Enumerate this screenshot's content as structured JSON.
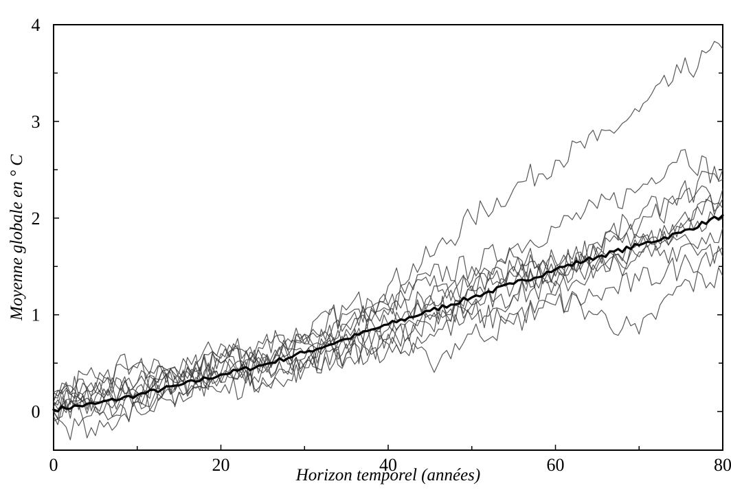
{
  "chart_data": {
    "type": "line",
    "title": "",
    "xlabel": "Horizon temporel (années)",
    "ylabel": "Moyenne globale en ° C",
    "xlim": [
      0,
      80
    ],
    "ylim": [
      -0.4,
      4
    ],
    "x_ticks": [
      0,
      20,
      40,
      60,
      80
    ],
    "x_tick_labels": [
      "0",
      "20",
      "40",
      "60",
      "80"
    ],
    "x_minor_ticks": [
      10,
      30,
      50,
      70
    ],
    "y_ticks": [
      0,
      1,
      2,
      3,
      4
    ],
    "y_tick_labels": [
      "0",
      "1",
      "2",
      "3",
      "4"
    ],
    "y_minor_ticks": [
      0.5,
      1.5,
      2.5,
      3.5
    ],
    "grid": false,
    "legend": "none",
    "colors": {
      "mean": "#000000",
      "runs": "#3a3a3a"
    },
    "series": [
      {
        "role": "mean",
        "x": [
          0,
          5,
          10,
          15,
          20,
          25,
          30,
          35,
          40,
          45,
          50,
          55,
          60,
          65,
          70,
          75,
          80
        ],
        "values": [
          0.02,
          0.08,
          0.17,
          0.27,
          0.38,
          0.48,
          0.61,
          0.75,
          0.9,
          1.04,
          1.18,
          1.32,
          1.47,
          1.6,
          1.72,
          1.85,
          2.03
        ]
      },
      {
        "role": "run",
        "x": [
          0,
          5,
          10,
          15,
          20,
          25,
          30,
          35,
          40,
          45,
          50,
          55,
          60,
          65,
          70,
          75,
          80
        ],
        "values": [
          0.1,
          0.2,
          0.3,
          0.35,
          0.7,
          0.55,
          0.8,
          1.05,
          1.3,
          1.6,
          2.0,
          2.3,
          2.6,
          2.8,
          3.1,
          3.5,
          3.75
        ]
      },
      {
        "role": "run",
        "x": [
          0,
          5,
          10,
          15,
          20,
          25,
          30,
          35,
          40,
          45,
          50,
          55,
          60,
          65,
          70,
          75,
          80
        ],
        "values": [
          0.0,
          0.1,
          0.25,
          0.3,
          0.4,
          0.5,
          0.6,
          0.9,
          1.1,
          1.4,
          1.5,
          1.7,
          1.9,
          2.1,
          2.3,
          2.7,
          2.4
        ]
      },
      {
        "role": "run",
        "x": [
          0,
          5,
          10,
          15,
          20,
          25,
          30,
          35,
          40,
          45,
          50,
          55,
          60,
          65,
          70,
          75,
          80
        ],
        "values": [
          0.15,
          0.3,
          0.2,
          0.4,
          0.55,
          0.65,
          0.75,
          0.9,
          1.05,
          1.0,
          1.25,
          1.5,
          1.45,
          1.7,
          1.9,
          2.2,
          2.5
        ]
      },
      {
        "role": "run",
        "x": [
          0,
          5,
          10,
          15,
          20,
          25,
          30,
          35,
          40,
          45,
          50,
          55,
          60,
          65,
          70,
          75,
          80
        ],
        "values": [
          -0.1,
          -0.25,
          0.1,
          0.2,
          0.3,
          0.45,
          0.5,
          0.7,
          0.8,
          0.9,
          1.1,
          1.2,
          1.5,
          1.65,
          1.8,
          2.0,
          2.2
        ]
      },
      {
        "role": "run",
        "x": [
          0,
          5,
          10,
          15,
          20,
          25,
          30,
          35,
          40,
          45,
          50,
          55,
          60,
          65,
          70,
          75,
          80
        ],
        "values": [
          0.2,
          0.25,
          0.45,
          0.35,
          0.5,
          0.6,
          0.55,
          0.8,
          0.85,
          1.1,
          1.0,
          1.2,
          1.3,
          1.45,
          1.6,
          1.7,
          1.9
        ]
      },
      {
        "role": "run",
        "x": [
          0,
          5,
          10,
          15,
          20,
          25,
          30,
          35,
          40,
          45,
          50,
          55,
          60,
          65,
          70,
          75,
          80
        ],
        "values": [
          0.05,
          0.0,
          0.15,
          0.3,
          0.2,
          0.35,
          0.45,
          0.6,
          0.7,
          0.5,
          0.8,
          0.9,
          1.2,
          1.0,
          0.8,
          1.3,
          1.4
        ]
      },
      {
        "role": "run",
        "x": [
          0,
          5,
          10,
          15,
          20,
          25,
          30,
          35,
          40,
          45,
          50,
          55,
          60,
          65,
          70,
          75,
          80
        ],
        "values": [
          0.1,
          0.15,
          0.2,
          0.25,
          0.4,
          0.55,
          0.7,
          0.65,
          0.9,
          1.2,
          1.3,
          1.4,
          1.35,
          1.6,
          1.75,
          1.8,
          1.6
        ]
      },
      {
        "role": "run",
        "x": [
          0,
          5,
          10,
          15,
          20,
          25,
          30,
          35,
          40,
          45,
          50,
          55,
          60,
          65,
          70,
          75,
          80
        ],
        "values": [
          0.0,
          0.2,
          0.1,
          0.3,
          0.35,
          0.4,
          0.5,
          0.6,
          0.65,
          0.8,
          0.95,
          1.0,
          1.1,
          1.2,
          1.35,
          1.5,
          1.7
        ]
      },
      {
        "role": "run",
        "x": [
          0,
          5,
          10,
          15,
          20,
          25,
          30,
          35,
          40,
          45,
          50,
          55,
          60,
          65,
          70,
          75,
          80
        ],
        "values": [
          0.2,
          0.35,
          0.5,
          0.4,
          0.6,
          0.7,
          0.8,
          1.0,
          1.1,
          1.3,
          1.25,
          1.45,
          1.55,
          1.5,
          1.65,
          1.95,
          2.3
        ]
      },
      {
        "role": "run",
        "x": [
          0,
          5,
          10,
          15,
          20,
          25,
          30,
          35,
          40,
          45,
          50,
          55,
          60,
          65,
          70,
          75,
          80
        ],
        "values": [
          -0.05,
          0.05,
          0.0,
          0.2,
          0.3,
          0.3,
          0.45,
          0.55,
          0.75,
          0.95,
          1.1,
          1.3,
          1.4,
          1.55,
          1.7,
          1.9,
          2.0
        ]
      },
      {
        "role": "run",
        "x": [
          0,
          5,
          10,
          15,
          20,
          25,
          30,
          35,
          40,
          45,
          50,
          55,
          60,
          65,
          70,
          75,
          80
        ],
        "values": [
          0.1,
          0.05,
          0.3,
          0.35,
          0.5,
          0.45,
          0.7,
          0.85,
          1.0,
          1.15,
          1.35,
          1.6,
          1.5,
          1.75,
          2.0,
          2.3,
          2.1
        ]
      }
    ]
  }
}
